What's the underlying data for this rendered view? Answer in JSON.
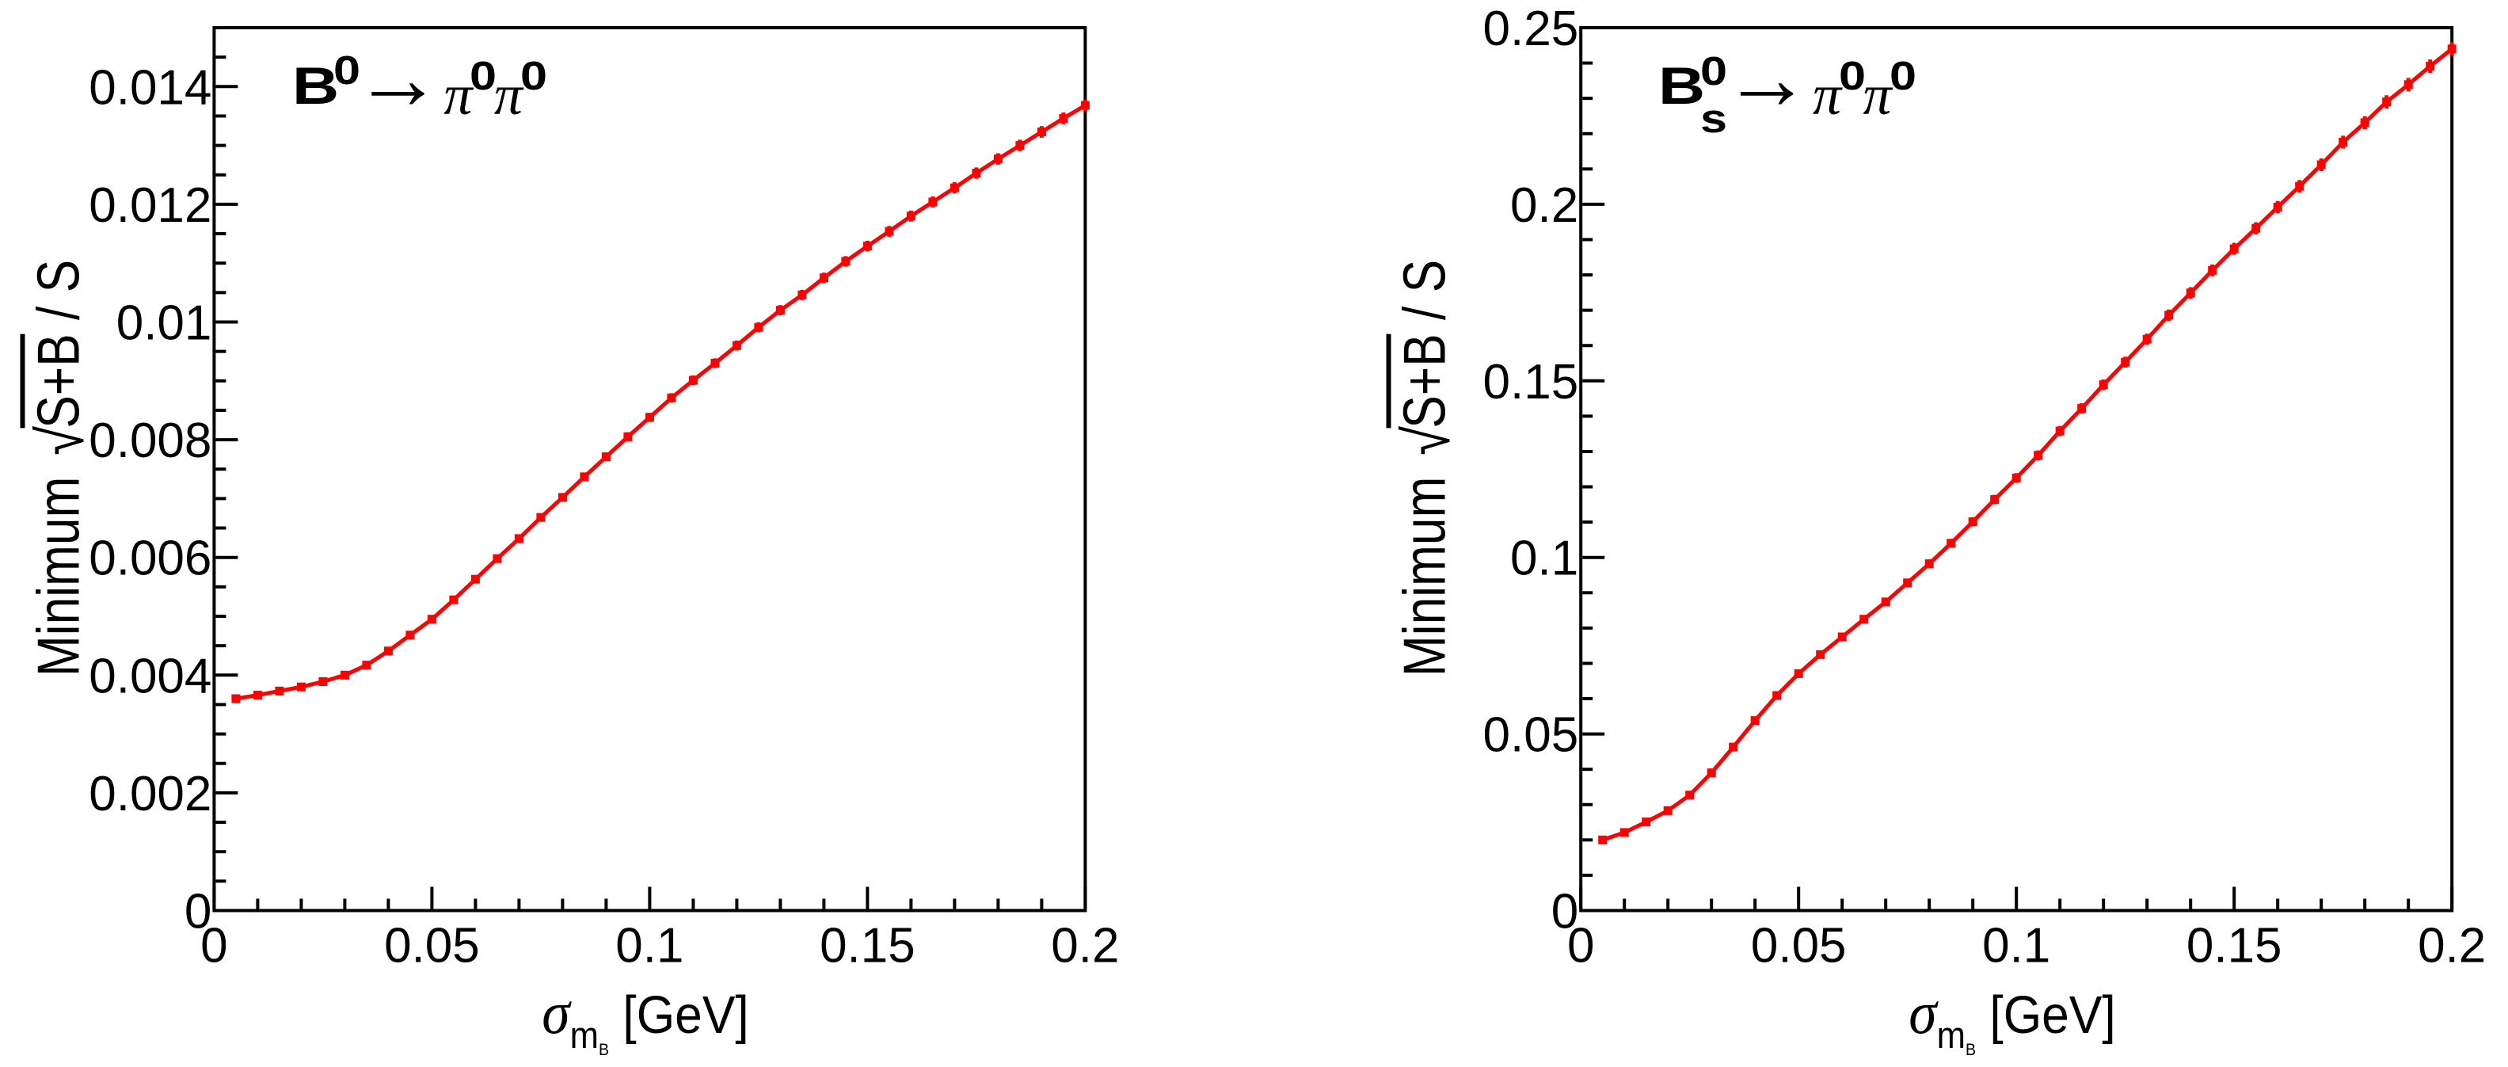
{
  "page": {
    "background": "#ffffff",
    "text_color": "#000000"
  },
  "chart_data": [
    {
      "type": "line",
      "panel": "left",
      "annotation": {
        "particle": "B",
        "particle_sup": "0",
        "particle_sub": "",
        "arrow": "→",
        "product1": "π",
        "product1_sup": "0",
        "product2": "π",
        "product2_sup": "0"
      },
      "xlabel": {
        "symbol": "σ",
        "sub": "m",
        "subsub": "B",
        "units": "[GeV]"
      },
      "ylabel": {
        "prefix": "Minimum ",
        "radical": "√",
        "radicand": "S+B",
        "suffix": " / S"
      },
      "xlim": [
        0,
        0.2
      ],
      "ylim": [
        0,
        0.015
      ],
      "grid": false,
      "legend": "none",
      "line_color": "#ff0000",
      "marker": "square",
      "xticks": {
        "major_step": 0.05,
        "minor_step": 0.01,
        "labels": [
          "0",
          "0.05",
          "0.1",
          "0.15",
          "0.2"
        ],
        "label_values": [
          0,
          0.05,
          0.1,
          0.15,
          0.2
        ]
      },
      "yticks": {
        "major_step": 0.002,
        "minor_step": 0.0005,
        "labels": [
          "0",
          "0.002",
          "0.004",
          "0.006",
          "0.008",
          "0.01",
          "0.012",
          "0.014"
        ],
        "label_values": [
          0,
          0.002,
          0.004,
          0.006,
          0.008,
          0.01,
          0.012,
          0.014
        ]
      },
      "x": [
        0.005,
        0.01,
        0.015,
        0.02,
        0.025,
        0.03,
        0.035,
        0.04,
        0.045,
        0.05,
        0.055,
        0.06,
        0.065,
        0.07,
        0.075,
        0.08,
        0.085,
        0.09,
        0.095,
        0.1,
        0.105,
        0.11,
        0.115,
        0.12,
        0.125,
        0.13,
        0.135,
        0.14,
        0.145,
        0.15,
        0.155,
        0.16,
        0.165,
        0.17,
        0.175,
        0.18,
        0.185,
        0.19,
        0.195,
        0.2
      ],
      "y": [
        0.0036,
        0.00366,
        0.00373,
        0.0038,
        0.00389,
        0.004,
        0.00417,
        0.00441,
        0.00468,
        0.00495,
        0.00528,
        0.00563,
        0.00598,
        0.00632,
        0.00668,
        0.00702,
        0.00737,
        0.00771,
        0.00805,
        0.00838,
        0.00871,
        0.00901,
        0.0093,
        0.0096,
        0.00991,
        0.0102,
        0.01046,
        0.01075,
        0.01103,
        0.01129,
        0.01154,
        0.0118,
        0.01204,
        0.01228,
        0.01253,
        0.01277,
        0.013,
        0.01323,
        0.01346,
        0.01368
      ],
      "yerr": [
        5.13e-05,
        5.17e-05,
        5.22e-05,
        5.27e-05,
        5.33e-05,
        5.41e-05,
        5.52e-05,
        5.68e-05,
        5.85e-05,
        6.02e-05,
        6.21e-05,
        6.42e-05,
        6.61e-05,
        6.8e-05,
        6.99e-05,
        7.16e-05,
        7.34e-05,
        7.51e-05,
        7.67e-05,
        7.83e-05,
        7.98e-05,
        8.12e-05,
        8.25e-05,
        8.38e-05,
        8.51e-05,
        8.64e-05,
        8.74e-05,
        8.86e-05,
        8.98e-05,
        9.08e-05,
        9.18e-05,
        9.29e-05,
        9.38e-05,
        9.47e-05,
        9.57e-05,
        9.66e-05,
        9.75e-05,
        9.83e-05,
        9.92e-05,
        0.0001
      ]
    },
    {
      "type": "line",
      "panel": "right",
      "annotation": {
        "particle": "B",
        "particle_sup": "0",
        "particle_sub": "s",
        "arrow": "→",
        "product1": "π",
        "product1_sup": "0",
        "product2": "π",
        "product2_sup": "0"
      },
      "xlabel": {
        "symbol": "σ",
        "sub": "m",
        "subsub": "B",
        "units": "[GeV]"
      },
      "ylabel": {
        "prefix": "Minimum ",
        "radical": "√",
        "radicand": "S+B",
        "suffix": " / S"
      },
      "xlim": [
        0,
        0.2
      ],
      "ylim": [
        0,
        0.25
      ],
      "grid": false,
      "legend": "none",
      "line_color": "#ff0000",
      "marker": "square",
      "xticks": {
        "major_step": 0.05,
        "minor_step": 0.01,
        "labels": [
          "0",
          "0.05",
          "0.1",
          "0.15",
          "0.2"
        ],
        "label_values": [
          0,
          0.05,
          0.1,
          0.15,
          0.2
        ]
      },
      "yticks": {
        "major_step": 0.05,
        "minor_step": 0.01,
        "labels": [
          "0",
          "0.05",
          "0.1",
          "0.15",
          "0.2",
          "0.25"
        ],
        "label_values": [
          0,
          0.05,
          0.1,
          0.15,
          0.2,
          0.25
        ]
      },
      "x": [
        0.005,
        0.01,
        0.015,
        0.02,
        0.025,
        0.03,
        0.035,
        0.04,
        0.045,
        0.05,
        0.055,
        0.06,
        0.065,
        0.07,
        0.075,
        0.08,
        0.085,
        0.09,
        0.095,
        0.1,
        0.105,
        0.11,
        0.115,
        0.12,
        0.125,
        0.13,
        0.135,
        0.14,
        0.145,
        0.15,
        0.155,
        0.16,
        0.165,
        0.17,
        0.175,
        0.18,
        0.185,
        0.19,
        0.195,
        0.2
      ],
      "y": [
        0.02,
        0.0221,
        0.0251,
        0.0283,
        0.0327,
        0.039,
        0.0463,
        0.0538,
        0.0609,
        0.0671,
        0.0725,
        0.0775,
        0.0825,
        0.0874,
        0.0928,
        0.0982,
        0.104,
        0.1101,
        0.1164,
        0.1225,
        0.1289,
        0.1358,
        0.1422,
        0.1489,
        0.1553,
        0.1618,
        0.1686,
        0.1749,
        0.1813,
        0.1874,
        0.1932,
        0.1992,
        0.2051,
        0.2112,
        0.2176,
        0.2231,
        0.229,
        0.2339,
        0.2391,
        0.244
      ],
      "yerr": [
        0.000552,
        0.00058,
        0.000618,
        0.000656,
        0.000705,
        0.00077,
        0.000839,
        0.000905,
        0.000962,
        0.00101,
        0.00105,
        0.001086,
        0.00112,
        0.001153,
        0.001188,
        0.001222,
        0.001258,
        0.001294,
        0.001331,
        0.001365,
        0.0014,
        0.001437,
        0.001471,
        0.001505,
        0.001537,
        0.001569,
        0.001601,
        0.001631,
        0.001661,
        0.001688,
        0.001714,
        0.001741,
        0.001766,
        0.001792,
        0.001819,
        0.001842,
        0.001866,
        0.001886,
        0.001907,
        0.001926
      ]
    }
  ]
}
